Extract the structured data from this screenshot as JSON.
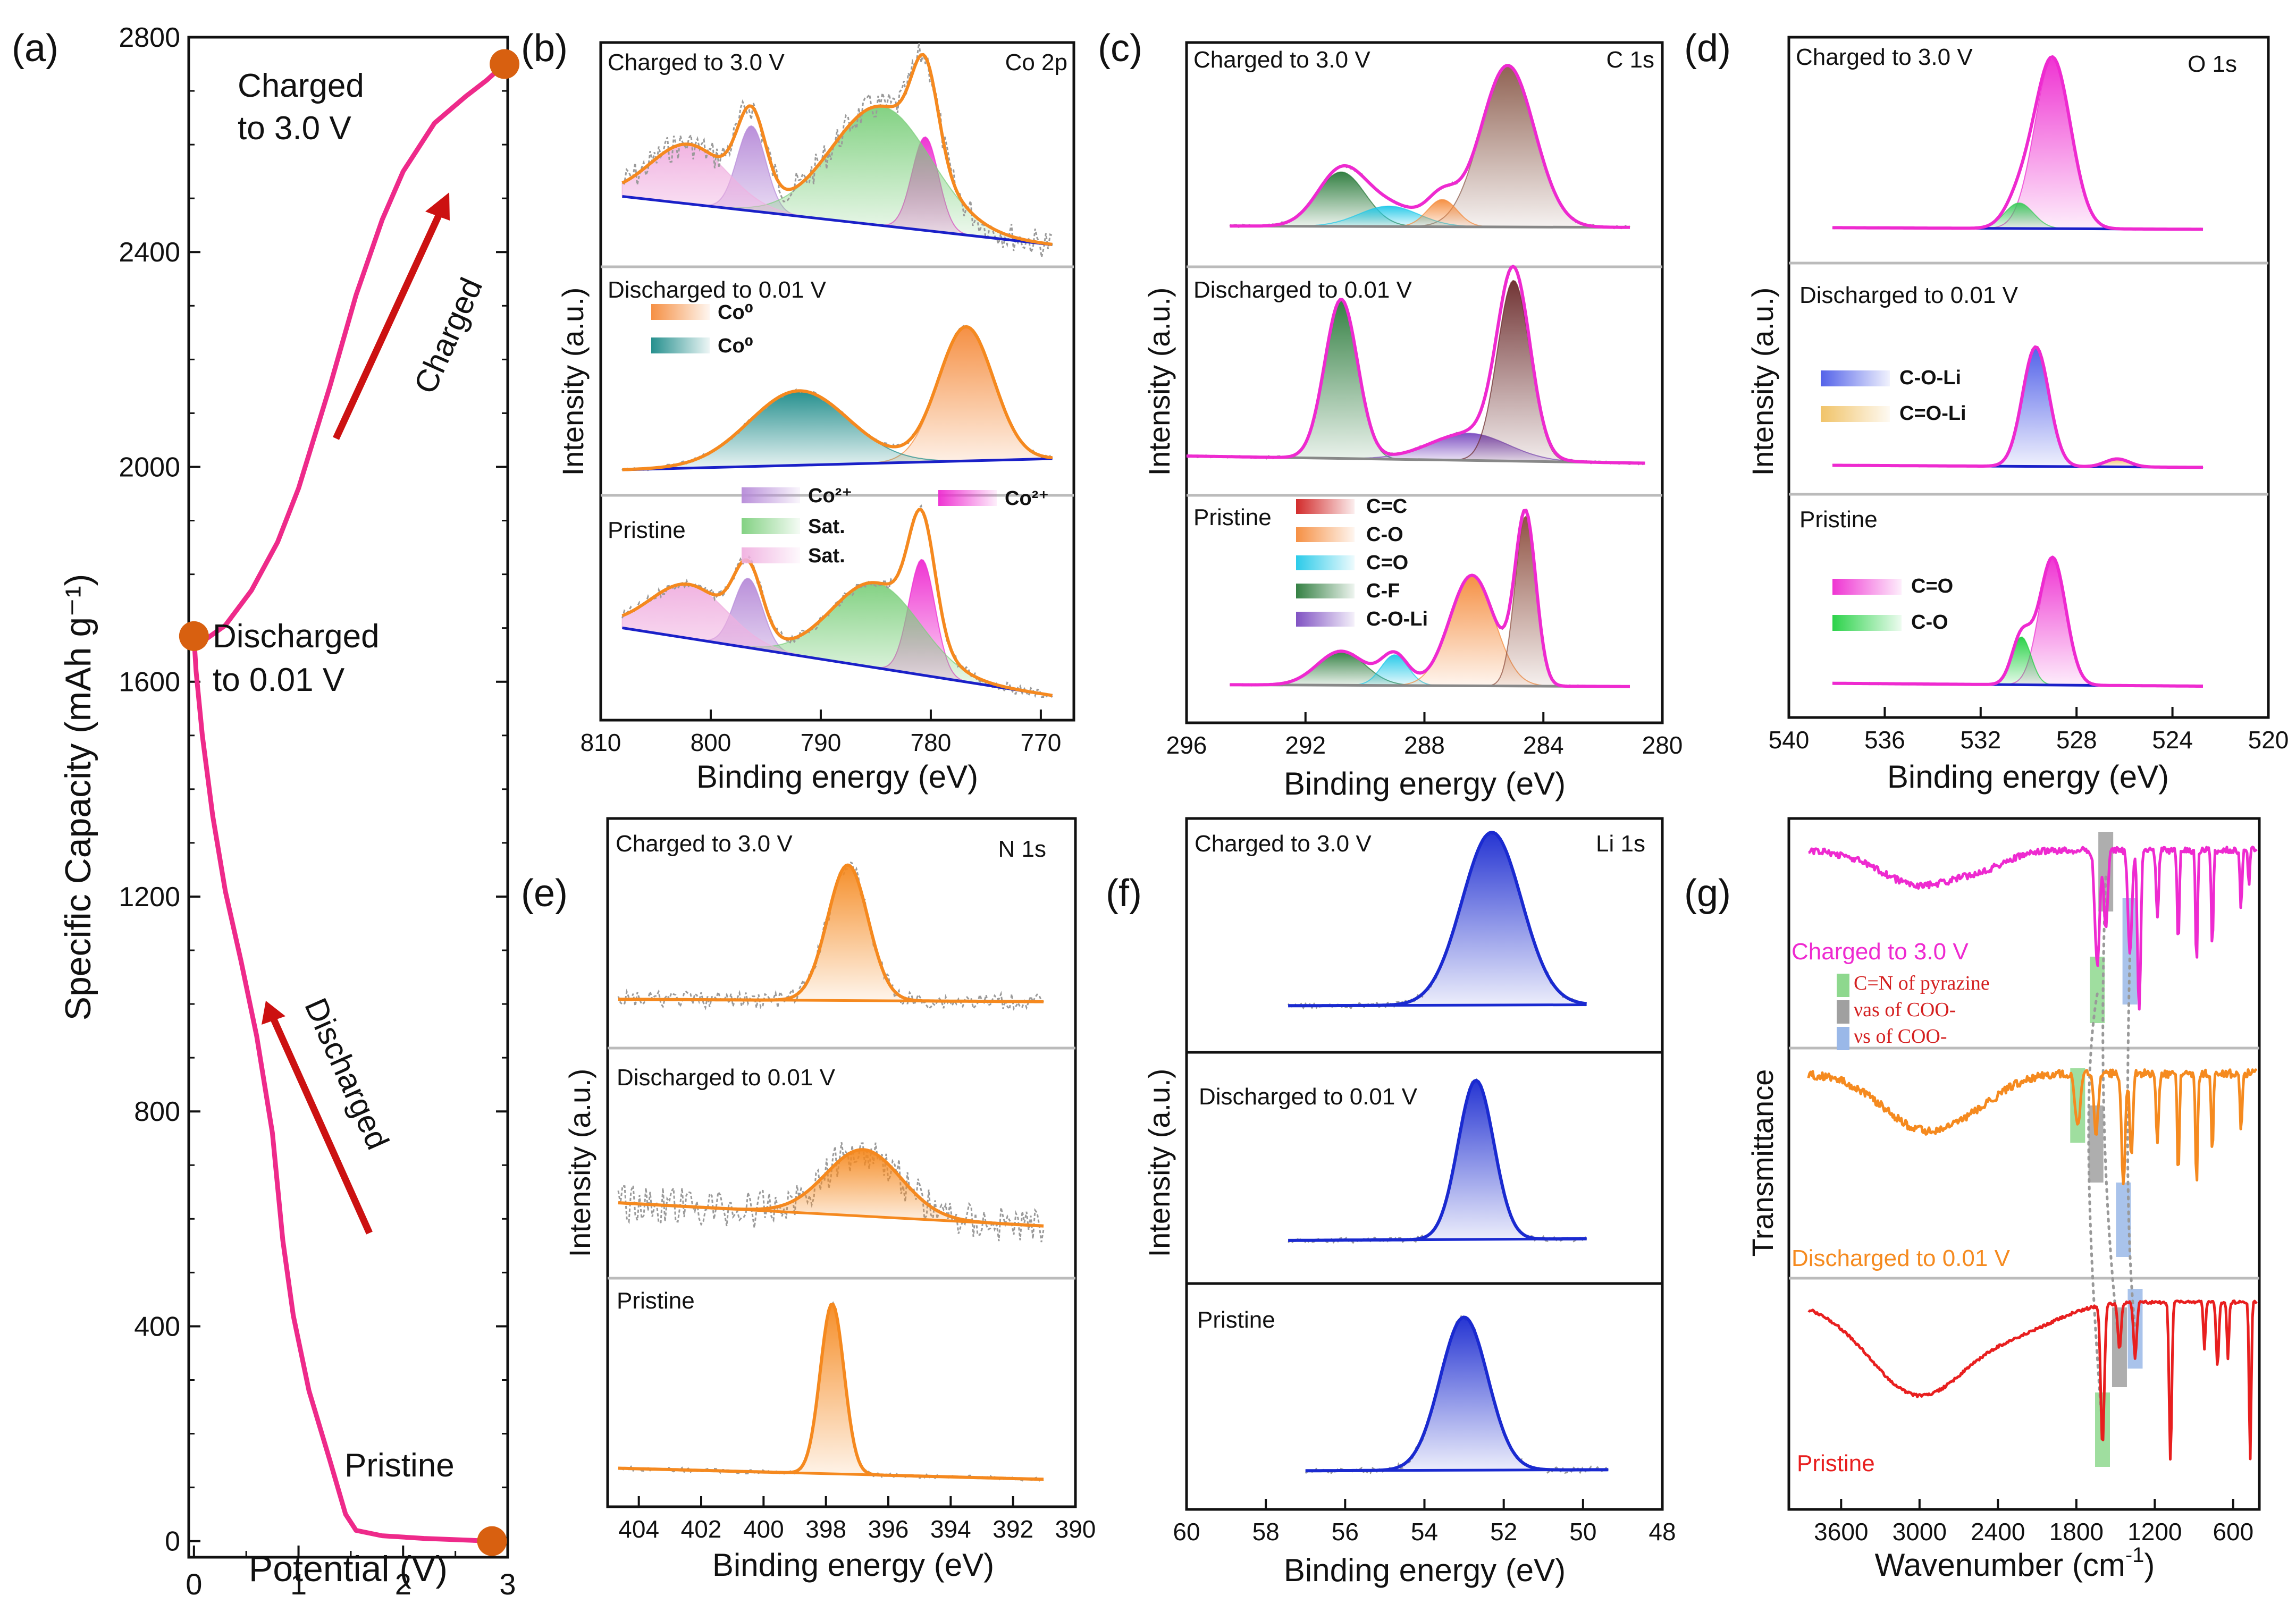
{
  "panel_a": {
    "letter": "(a)",
    "chart_data": {
      "type": "line",
      "title": "",
      "xlabel": "Potential (V)",
      "ylabel": "Specific Capacity (mAh g⁻¹)",
      "xlim": [
        -0.05,
        3.0
      ],
      "ylim": [
        -30,
        2800
      ],
      "xticks": [
        "0",
        "1",
        "2",
        "3"
      ],
      "yticks": [
        "0",
        "400",
        "800",
        "1200",
        "1600",
        "2000",
        "2400",
        "2800"
      ],
      "curve_color": "#ee2a8a",
      "discharge": {
        "x": [
          2.85,
          2.2,
          1.8,
          1.55,
          1.45,
          1.3,
          1.1,
          0.95,
          0.85,
          0.75,
          0.6,
          0.45,
          0.3,
          0.18,
          0.08,
          0.02,
          0.0
        ],
        "y": [
          0,
          5,
          10,
          20,
          50,
          150,
          280,
          420,
          560,
          760,
          940,
          1080,
          1210,
          1350,
          1500,
          1620,
          1685
        ]
      },
      "charge": {
        "x": [
          0.0,
          0.12,
          0.3,
          0.55,
          0.8,
          1.0,
          1.3,
          1.55,
          1.8,
          2.0,
          2.3,
          2.6,
          2.8,
          2.97
        ],
        "y": [
          1685,
          1680,
          1705,
          1770,
          1860,
          1960,
          2150,
          2320,
          2460,
          2550,
          2640,
          2690,
          2720,
          2750
        ]
      },
      "points": [
        {
          "x": 2.97,
          "y": 2750
        },
        {
          "x": 0.0,
          "y": 1685
        },
        {
          "x": 2.85,
          "y": 0
        }
      ],
      "annotations": {
        "charged_line1": "Charged",
        "charged_line2": "to 3.0 V",
        "discharged_line1": "Discharged",
        "discharged_line2": "to 0.01 V",
        "pristine": "Pristine",
        "arrow_charged": "Charged",
        "arrow_discharged": "Discharged"
      }
    }
  },
  "xps_common": {
    "ylabel": "Intensity (a.u.)",
    "xlabel": "Binding energy (eV)",
    "charged": "Charged to 3.0 V",
    "discharged": "Discharged to 0.01 V",
    "pristine": "Pristine"
  },
  "panel_b": {
    "letter": "(b)",
    "element": "Co 2p",
    "chart_data": {
      "type": "line",
      "xlim": [
        810,
        767
      ],
      "xticks": [
        "810",
        "800",
        "790",
        "780",
        "770"
      ],
      "components_charged": [
        {
          "name": "Co²⁺",
          "center": 780.5,
          "height": 0.55,
          "width": 1.2,
          "color": "#ee2ad0"
        },
        {
          "name": "Co²⁺",
          "center": 796.3,
          "height": 0.5,
          "width": 1.3,
          "color": "#b68ad8"
        },
        {
          "name": "Sat.",
          "center": 784.5,
          "height": 0.7,
          "width": 4.5,
          "color": "#7ccf7c"
        },
        {
          "name": "Sat.",
          "center": 802.0,
          "height": 0.35,
          "width": 3.5,
          "color": "#f0b0e0"
        }
      ],
      "components_discharged": [
        {
          "name": "Co⁰",
          "center": 776.8,
          "height": 0.9,
          "width": 2.5,
          "color": "#f58a3a"
        },
        {
          "name": "Co⁰",
          "center": 792.0,
          "height": 0.5,
          "width": 4.5,
          "color": "#1a8a88"
        }
      ],
      "components_pristine": [
        {
          "name": "Co²⁺",
          "center": 780.8,
          "height": 0.75,
          "width": 1.2,
          "color": "#ee2ad0"
        },
        {
          "name": "Co²⁺",
          "center": 796.6,
          "height": 0.45,
          "width": 1.3,
          "color": "#b68ad8"
        },
        {
          "name": "Sat.",
          "center": 785.0,
          "height": 0.55,
          "width": 4.0,
          "color": "#7ccf7c"
        },
        {
          "name": "Sat.",
          "center": 802.0,
          "height": 0.35,
          "width": 3.5,
          "color": "#f0b0e0"
        }
      ],
      "legend": [
        {
          "label": "Co⁰",
          "color": "#f58a3a"
        },
        {
          "label": "Co⁰",
          "color": "#1a8a88"
        },
        {
          "label": "Co²⁺",
          "color": "#b68ad8"
        },
        {
          "label": "Sat.",
          "color": "#7ccf7c"
        },
        {
          "label": "Sat.",
          "color": "#f0b0e0"
        },
        {
          "label": "Co²⁺",
          "color": "#ee2ad0"
        }
      ]
    }
  },
  "panel_c": {
    "letter": "(c)",
    "element": "C 1s",
    "chart_data": {
      "type": "line",
      "xlim": [
        296,
        280
      ],
      "xticks": [
        "296",
        "292",
        "288",
        "284",
        "280"
      ],
      "components_charged": [
        {
          "name": "C=C",
          "center": 285.2,
          "height": 0.95,
          "width": 0.9,
          "color": "#8a5a4a"
        },
        {
          "name": "C-F",
          "center": 290.8,
          "height": 0.32,
          "width": 0.8,
          "color": "#2a7a3a"
        },
        {
          "name": "C=O",
          "center": 289.2,
          "height": 0.12,
          "width": 1.0,
          "color": "#20c8e8"
        },
        {
          "name": "C-O",
          "center": 287.4,
          "height": 0.16,
          "width": 0.5,
          "color": "#f58a3a"
        }
      ],
      "components_discharged": [
        {
          "name": "C-F",
          "center": 290.8,
          "height": 0.88,
          "width": 0.55,
          "color": "#2a7a3a"
        },
        {
          "name": "C-O-Li",
          "center": 286.5,
          "height": 0.15,
          "width": 1.3,
          "color": "#7a4ac0"
        },
        {
          "name": "C=C",
          "center": 285.0,
          "height": 1.0,
          "width": 0.55,
          "color": "#6a2a2a"
        }
      ],
      "components_pristine": [
        {
          "name": "C-F",
          "center": 290.8,
          "height": 0.2,
          "width": 0.8,
          "color": "#2a7a3a"
        },
        {
          "name": "C=O",
          "center": 289.0,
          "height": 0.18,
          "width": 0.45,
          "color": "#20c8e8"
        },
        {
          "name": "C-O",
          "center": 286.4,
          "height": 0.65,
          "width": 0.75,
          "color": "#f58a3a"
        },
        {
          "name": "C=C",
          "center": 284.6,
          "height": 1.0,
          "width": 0.35,
          "color": "#8a4a3a"
        }
      ],
      "legend": [
        {
          "label": "C=C",
          "color": "#d02020"
        },
        {
          "label": "C-O",
          "color": "#f58a3a"
        },
        {
          "label": "C=O",
          "color": "#20c8e8"
        },
        {
          "label": "C-F",
          "color": "#2a7a3a"
        },
        {
          "label": "C-O-Li",
          "color": "#7a4ac0"
        }
      ]
    }
  },
  "panel_d": {
    "letter": "(d)",
    "element": "O 1s",
    "chart_data": {
      "type": "line",
      "xlim": [
        540,
        520
      ],
      "xticks": [
        "540",
        "536",
        "532",
        "528",
        "524",
        "520"
      ],
      "components_charged": [
        {
          "name": "C=O",
          "center": 529.0,
          "height": 1.0,
          "width": 0.75,
          "color": "#ee2ad0"
        },
        {
          "name": "C-O",
          "center": 530.4,
          "height": 0.15,
          "width": 0.6,
          "color": "#3aca5a"
        }
      ],
      "components_discharged": [
        {
          "name": "C-O-Li",
          "center": 529.7,
          "height": 0.75,
          "width": 0.55,
          "color": "#4a5ae8"
        },
        {
          "name": "C=O-Li",
          "center": 526.3,
          "height": 0.05,
          "width": 0.5,
          "color": "#f0c060"
        }
      ],
      "components_pristine": [
        {
          "name": "C=O",
          "center": 529.0,
          "height": 0.8,
          "width": 0.55,
          "color": "#ee2ad0"
        },
        {
          "name": "C-O",
          "center": 530.3,
          "height": 0.3,
          "width": 0.4,
          "color": "#20d040"
        }
      ],
      "legend": [
        {
          "label": "C-O-Li",
          "color": "#4a5ae8"
        },
        {
          "label": "C=O-Li",
          "color": "#f0c060"
        },
        {
          "label": "C=O",
          "color": "#ee2ad0"
        },
        {
          "label": "C-O",
          "color": "#20d040"
        }
      ]
    }
  },
  "panel_e": {
    "letter": "(e)",
    "element": "N 1s",
    "chart_data": {
      "type": "line",
      "xlim": [
        405,
        390
      ],
      "xticks": [
        "404",
        "402",
        "400",
        "398",
        "396",
        "394",
        "392",
        "390"
      ],
      "peaks": [
        {
          "state": "charged",
          "center": 397.3,
          "height": 0.85,
          "width": 0.65
        },
        {
          "state": "discharged",
          "center": 396.8,
          "height": 0.5,
          "width": 1.2
        },
        {
          "state": "pristine",
          "center": 397.8,
          "height": 1.0,
          "width": 0.38
        }
      ],
      "color": "#f5891f"
    }
  },
  "panel_f": {
    "letter": "(f)",
    "element": "Li 1s",
    "chart_data": {
      "type": "line",
      "xlim": [
        60,
        48
      ],
      "xticks": [
        "60",
        "58",
        "56",
        "54",
        "52",
        "50",
        "48"
      ],
      "peaks": [
        {
          "state": "charged",
          "center": 52.3,
          "height": 1.0,
          "width": 0.75
        },
        {
          "state": "discharged",
          "center": 52.7,
          "height": 0.95,
          "width": 0.45
        },
        {
          "state": "pristine",
          "center": 53.0,
          "height": 0.9,
          "width": 0.6
        }
      ],
      "color": "#1a2ad0"
    }
  },
  "panel_g": {
    "letter": "(g)",
    "chart_data": {
      "type": "line",
      "xlabel_main": "Wavenumber (cm",
      "xlabel_sup": "-1",
      "xlabel_close": ")",
      "ylabel": "Transmittance",
      "xlim": [
        4000,
        400
      ],
      "xticks": [
        "3600",
        "3000",
        "2400",
        "1800",
        "1200",
        "600"
      ],
      "series": [
        {
          "name": "Charged to 3.0 V",
          "color": "#ee2ad0"
        },
        {
          "name": "Discharged to 0.01 V",
          "color": "#f58a1f"
        },
        {
          "name": "Pristine",
          "color": "#e81f1f"
        }
      ],
      "bands": [
        {
          "label": "C=N of pyrazine",
          "color": "#8ed88e"
        },
        {
          "label": "νas of COO-",
          "color": "#a0a0a0"
        },
        {
          "label": "νs of COO-",
          "color": "#9ab8e8"
        }
      ]
    }
  }
}
